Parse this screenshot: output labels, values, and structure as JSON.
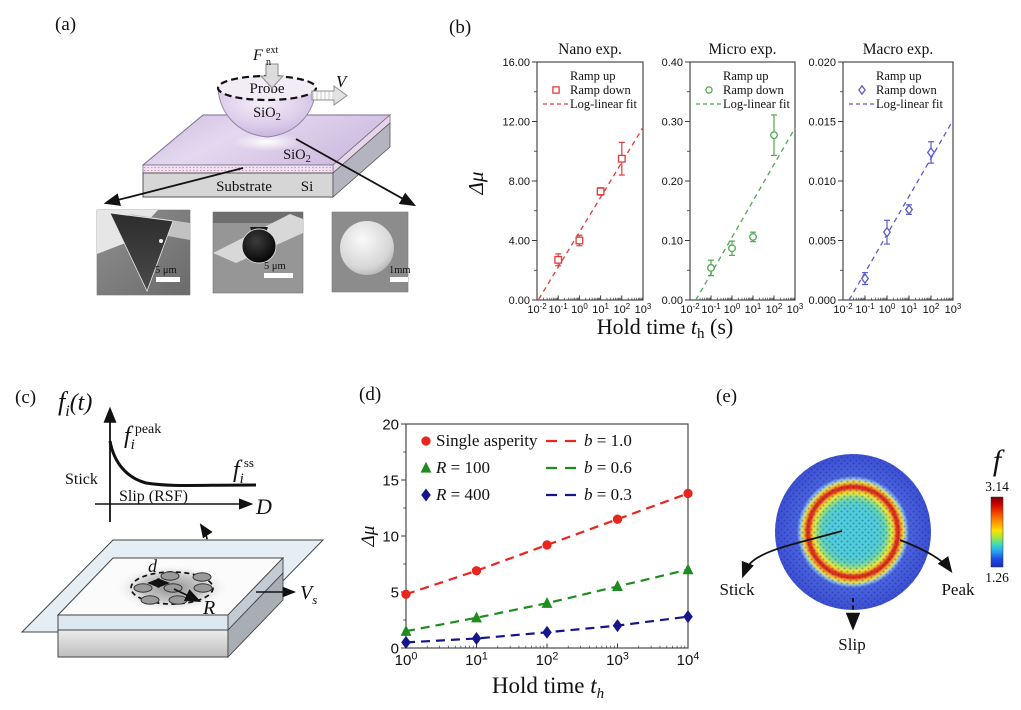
{
  "panels": {
    "a": {
      "label": "(a)",
      "force": {
        "base": "F",
        "sub": "n",
        "sup": "ext"
      },
      "velocity": "V",
      "probe": "Probe",
      "probe_material": {
        "base": "SiO",
        "sub": "2"
      },
      "film_material": {
        "base": "SiO",
        "sub": "2"
      },
      "substrate": "Substrate",
      "substrate_material": "Si",
      "sem": [
        {
          "scale": "5 μm"
        },
        {
          "scale": "5 μm"
        },
        {
          "scale": "1mm"
        }
      ]
    },
    "b": {
      "label": "(b)",
      "ylabel": "Δμ",
      "xlabel": {
        "pre": "Hold time ",
        "var": "t",
        "sub": "h",
        "post": " (s)"
      }
    },
    "c": {
      "label": "(c)",
      "fi_t": {
        "base": "f",
        "sub": "i",
        "post": "(t)"
      },
      "fi_peak": {
        "base": "f",
        "sub": "i",
        "sup": "peak"
      },
      "fi_ss": {
        "base": "f",
        "sub": "i",
        "sup": "ss"
      },
      "stick": "Stick",
      "slip": "Slip (RSF)",
      "x_axis_label": "D",
      "d_label": "d",
      "R_label": "R",
      "Vs": {
        "base": "V",
        "sub": "s"
      }
    },
    "d": {
      "label": "(d)",
      "ylabel": "Δμ",
      "xlabel": {
        "pre": "Hold time ",
        "var": "t",
        "sub": "h",
        "post": ""
      }
    },
    "e": {
      "label": "(e)",
      "colorbar": {
        "title": "f",
        "max": "3.14",
        "min": "1.26"
      },
      "stick": "Stick",
      "slip": "Slip",
      "peak": "Peak"
    }
  },
  "chart_data": [
    {
      "id": "nano",
      "type": "scatter",
      "title": "Nano exp.",
      "x_scale": "log",
      "x_exp_range": [
        -2,
        3
      ],
      "x_tick_exponents": [
        -2,
        -1,
        0,
        1,
        2,
        3
      ],
      "ylim": [
        0,
        16
      ],
      "ytick_vals": [
        0,
        4,
        8,
        12,
        16
      ],
      "ytick_labels": [
        "0.00",
        "4.00",
        "8.00",
        "12.00",
        "16.00"
      ],
      "color": "#e03c3c",
      "marker": "square",
      "legend": [
        "Ramp up",
        "Ramp down",
        "Log-linear fit"
      ],
      "points": [
        {
          "x": 0.1,
          "y": 2.7,
          "err": 0.4
        },
        {
          "x": 1,
          "y": 4.0,
          "err": 0.35
        },
        {
          "x": 10,
          "y": 7.3,
          "err": 0.25
        },
        {
          "x": 100,
          "y": 9.5,
          "err": 1.1
        }
      ],
      "fit_line": {
        "x": [
          0.012,
          1000
        ],
        "y": [
          0.05,
          11.6
        ]
      }
    },
    {
      "id": "micro",
      "type": "scatter",
      "title": "Micro exp.",
      "x_scale": "log",
      "x_exp_range": [
        -2,
        3
      ],
      "x_tick_exponents": [
        -2,
        -1,
        0,
        1,
        2,
        3
      ],
      "ylim": [
        0,
        0.4
      ],
      "ytick_vals": [
        0,
        0.1,
        0.2,
        0.3,
        0.4
      ],
      "ytick_labels": [
        "0.00",
        "0.10",
        "0.20",
        "0.30",
        "0.40"
      ],
      "color": "#4ea84e",
      "marker": "circle",
      "legend": [
        "Ramp up",
        "Ramp down",
        "Log-linear fit"
      ],
      "points": [
        {
          "x": 0.1,
          "y": 0.054,
          "err": 0.013
        },
        {
          "x": 1,
          "y": 0.087,
          "err": 0.012
        },
        {
          "x": 10,
          "y": 0.106,
          "err": 0.008
        },
        {
          "x": 100,
          "y": 0.277,
          "err": 0.034
        }
      ],
      "fit_line": {
        "x": [
          0.019,
          1000
        ],
        "y": [
          0.0,
          0.289
        ]
      }
    },
    {
      "id": "macro",
      "type": "scatter",
      "title": "Macro exp.",
      "x_scale": "log",
      "x_exp_range": [
        -2,
        3
      ],
      "x_tick_exponents": [
        -2,
        -1,
        0,
        1,
        2,
        3
      ],
      "ylim": [
        0,
        0.02
      ],
      "ytick_vals": [
        0,
        0.005,
        0.01,
        0.015,
        0.02
      ],
      "ytick_labels": [
        "0.000",
        "0.005",
        "0.010",
        "0.015",
        "0.020"
      ],
      "color": "#5a5ad0",
      "marker": "diamond",
      "legend": [
        "Ramp up",
        "Ramp down",
        "Log-linear fit"
      ],
      "points": [
        {
          "x": 0.1,
          "y": 0.0018,
          "err": 0.0005
        },
        {
          "x": 1,
          "y": 0.0057,
          "err": 0.001
        },
        {
          "x": 10,
          "y": 0.0076,
          "err": 0.0004
        },
        {
          "x": 100,
          "y": 0.0124,
          "err": 0.0009
        }
      ],
      "fit_line": {
        "x": [
          0.019,
          1000
        ],
        "y": [
          0.0,
          0.0151
        ]
      }
    },
    {
      "id": "d",
      "type": "line",
      "x_scale": "log",
      "x_exp_range": [
        0,
        4
      ],
      "x_tick_exponents": [
        0,
        1,
        2,
        3,
        4
      ],
      "ylim": [
        0,
        20
      ],
      "ytick_vals": [
        0,
        5,
        10,
        15,
        20
      ],
      "ytick_labels": [
        "0",
        "5",
        "10",
        "15",
        "20"
      ],
      "x": [
        1,
        10,
        100,
        1000,
        10000
      ],
      "series": [
        {
          "name_var": "",
          "name_rest": "Single asperity",
          "line_var": "b",
          "line_rest": " = 1.0",
          "color": "#e8251f",
          "marker": "circle",
          "y": [
            4.8,
            6.9,
            9.2,
            11.5,
            13.8
          ]
        },
        {
          "name_var": "R",
          "name_rest": " = 100",
          "line_var": "b",
          "line_rest": " = 0.6",
          "color": "#1f8c1f",
          "marker": "triangle",
          "y": [
            1.5,
            2.7,
            4.0,
            5.5,
            7.0
          ]
        },
        {
          "name_var": "R",
          "name_rest": " = 400",
          "line_var": "b",
          "line_rest": " = 0.3",
          "color": "#16168c",
          "marker": "diamond",
          "y": [
            0.5,
            0.85,
            1.4,
            2.0,
            2.8
          ]
        }
      ]
    }
  ],
  "colors": {
    "nano_accent": "#e03c3c",
    "micro_accent": "#4ea84e",
    "macro_accent": "#5a5ad0",
    "d_red": "#e8251f",
    "d_green": "#1f8c1f",
    "d_navy": "#16168c",
    "lavender": "#d5c4e4",
    "jet_top": "#7f0000",
    "jet_bottom": "#1828c8"
  }
}
